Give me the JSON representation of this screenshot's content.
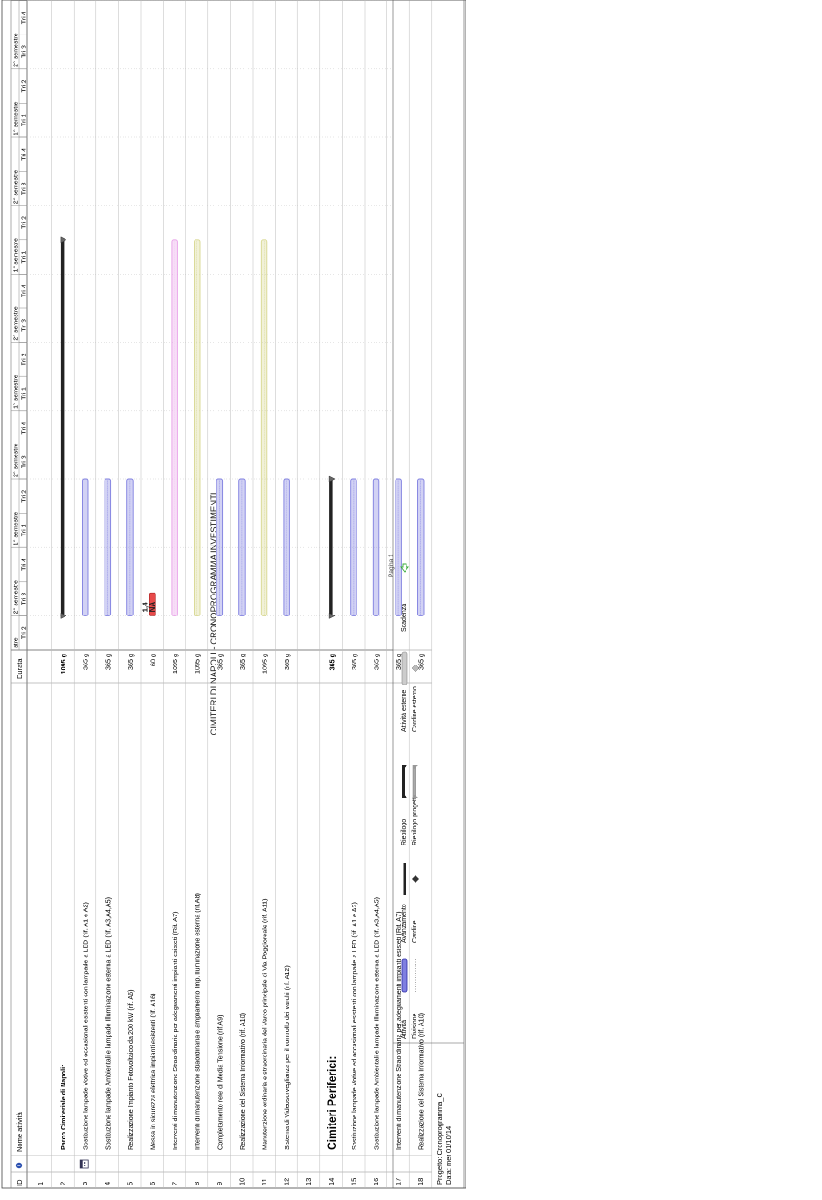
{
  "title": "CIMITERI DI NAPOLI - CRONOPROGRAMMA INVESTIMENTI",
  "columns": {
    "id": "ID",
    "name": "Nome attività",
    "duration": "Durata"
  },
  "timescale": {
    "periods": [
      "stre",
      "2° semestre",
      "1° semestre",
      "2° semestre",
      "1° semestre",
      "2° semestre",
      "1° semestre",
      "2° semestre",
      "1° semestre",
      "2° semestre",
      "1° semes"
    ],
    "quarters": [
      "Tri 2",
      "Tri 3",
      "Tri 4",
      "Tri 1",
      "Tri 2",
      "Tri 3",
      "Tri 4",
      "Tri 1",
      "Tri 2",
      "Tri 3",
      "Tri 4",
      "Tri 1",
      "Tri 2",
      "Tri 3",
      "Tri 4",
      "Tri 1",
      "Tri 2",
      "Tri 3",
      "Tri 4",
      "Tri 1"
    ]
  },
  "rows": [
    {
      "id": "1",
      "name": "",
      "duration": "",
      "bold": false,
      "big": false
    },
    {
      "id": "2",
      "name": "Parco Cimiteriale di Napoli:",
      "duration": "1095 g",
      "bold": true,
      "big": false
    },
    {
      "id": "3",
      "name": "Sostituzione lampade Votive ed occasionali esistenti con lampade a LED (rif. A1 e A2)",
      "duration": "365 g",
      "bold": false,
      "big": false
    },
    {
      "id": "4",
      "name": "Sostituzione lampade Ambientali e lampade Illuminazione esterna a LED (rif. A3,A4,A5)",
      "duration": "365 g",
      "bold": false,
      "big": false
    },
    {
      "id": "5",
      "name": "Realizzazione Impianto Fotovoltaico da 200 kW (rif. A6)",
      "duration": "365 g",
      "bold": false,
      "big": false
    },
    {
      "id": "6",
      "name": "Messa in sicurezza elettrica impianti esistenti (rif. A16)",
      "duration": "60 g",
      "bold": false,
      "big": false
    },
    {
      "id": "7",
      "name": "Interventi di manutenzione Straordinaria per adeguamenti impianti esisteti (Rif. A7)",
      "duration": "1095 g",
      "bold": false,
      "big": false
    },
    {
      "id": "8",
      "name": "Interventi di manutenzione straordinaria e ampliamento Imp.Illuminazione esterna (rif.A8)",
      "duration": "1095 g",
      "bold": false,
      "big": false
    },
    {
      "id": "9",
      "name": "Completamento rete di Media Tensione (rif.A9)",
      "duration": "365 g",
      "bold": false,
      "big": false
    },
    {
      "id": "10",
      "name": "Realizzazione del Sistema Informativo (rif. A10)",
      "duration": "365 g",
      "bold": false,
      "big": false
    },
    {
      "id": "11",
      "name": "Manutenzione ordinaria e straordinaria del Varco principale di Via Poggioreale (rif. A11)",
      "duration": "1095 g",
      "bold": false,
      "big": false
    },
    {
      "id": "12",
      "name": "Sistema di Videosorveglianza per il controllo dei varchi (rif. A12)",
      "duration": "365 g",
      "bold": false,
      "big": false
    },
    {
      "id": "13",
      "name": "",
      "duration": "",
      "bold": false,
      "big": false
    },
    {
      "id": "14",
      "name": "Cimiteri Periferici:",
      "duration": "365 g",
      "bold": true,
      "big": true
    },
    {
      "id": "15",
      "name": "Sostituzione lampade Votive ed occasionali esistenti con lampade a LED (rif. A1 e A2)",
      "duration": "365 g",
      "bold": false,
      "big": false
    },
    {
      "id": "16",
      "name": "Sostituzione lampade Ambientali e lampade Illuminazione esterna a LED (rif. A3,A4,A5)",
      "duration": "365 g",
      "bold": false,
      "big": false
    },
    {
      "id": "17",
      "name": "Interventi di manutenzione Straordinaria per adeguamenti impianti esisteti (Rif. A7)",
      "duration": "365 g",
      "bold": false,
      "big": false
    },
    {
      "id": "18",
      "name": "Realizzazione del Sistema Informativo (rif. A10)",
      "duration": "365 g",
      "bold": false,
      "big": false
    }
  ],
  "tasks": [
    {
      "row": 2,
      "kind": "summary",
      "start_q": 1.0,
      "end_q": 12.0,
      "color": "#222222"
    },
    {
      "row": 3,
      "kind": "task",
      "start_q": 1.0,
      "end_q": 5.0,
      "color": "#7f7fe0"
    },
    {
      "row": 4,
      "kind": "task",
      "start_q": 1.0,
      "end_q": 5.0,
      "color": "#7f7fe0"
    },
    {
      "row": 5,
      "kind": "task",
      "start_q": 1.0,
      "end_q": 5.0,
      "color": "#7f7fe0"
    },
    {
      "row": 6,
      "kind": "critical",
      "start_q": 1.0,
      "end_q": 1.67,
      "color": "#e84a4a",
      "label_top": "1,4",
      "label_bottom": "NA"
    },
    {
      "row": 7,
      "kind": "task",
      "start_q": 1.0,
      "end_q": 12.0,
      "color": "#e8a0e8"
    },
    {
      "row": 8,
      "kind": "task",
      "start_q": 1.0,
      "end_q": 12.0,
      "color": "#d8d890"
    },
    {
      "row": 9,
      "kind": "task",
      "start_q": 1.0,
      "end_q": 5.0,
      "color": "#7f7fe0"
    },
    {
      "row": 10,
      "kind": "task",
      "start_q": 1.0,
      "end_q": 5.0,
      "color": "#7f7fe0"
    },
    {
      "row": 11,
      "kind": "task",
      "start_q": 1.0,
      "end_q": 12.0,
      "color": "#d8d890"
    },
    {
      "row": 12,
      "kind": "task",
      "start_q": 1.0,
      "end_q": 5.0,
      "color": "#7f7fe0"
    },
    {
      "row": 14,
      "kind": "summary",
      "start_q": 1.0,
      "end_q": 5.0,
      "color": "#222222"
    },
    {
      "row": 15,
      "kind": "task",
      "start_q": 1.0,
      "end_q": 5.0,
      "color": "#7f7fe0"
    },
    {
      "row": 16,
      "kind": "task",
      "start_q": 1.0,
      "end_q": 5.0,
      "color": "#7f7fe0"
    },
    {
      "row": 17,
      "kind": "task",
      "start_q": 1.0,
      "end_q": 5.0,
      "color": "#7f7fe0"
    },
    {
      "row": 18,
      "kind": "task",
      "start_q": 1.0,
      "end_q": 5.0,
      "color": "#7f7fe0"
    }
  ],
  "footer": {
    "project": "Progetto: Cronoprogramma_C",
    "date": "Data: mer 01/10/14",
    "legend": [
      {
        "label": "Attività",
        "symbol": "task-icon"
      },
      {
        "label": "Divisione",
        "symbol": "split-icon"
      },
      {
        "label": "Avanzamento",
        "symbol": "progress-icon"
      },
      {
        "label": "Cardine",
        "symbol": "milestone-icon"
      },
      {
        "label": "Riepilogo",
        "symbol": "summary-icon"
      },
      {
        "label": "Riepilogo progetto",
        "symbol": "project-summary-icon"
      },
      {
        "label": "Attività esterne",
        "symbol": "external-tasks-icon"
      },
      {
        "label": "Cardine esterno",
        "symbol": "external-milestone-icon"
      },
      {
        "label": "Scadenza",
        "symbol": "deadline-icon"
      }
    ],
    "page": "Pagina 1"
  }
}
